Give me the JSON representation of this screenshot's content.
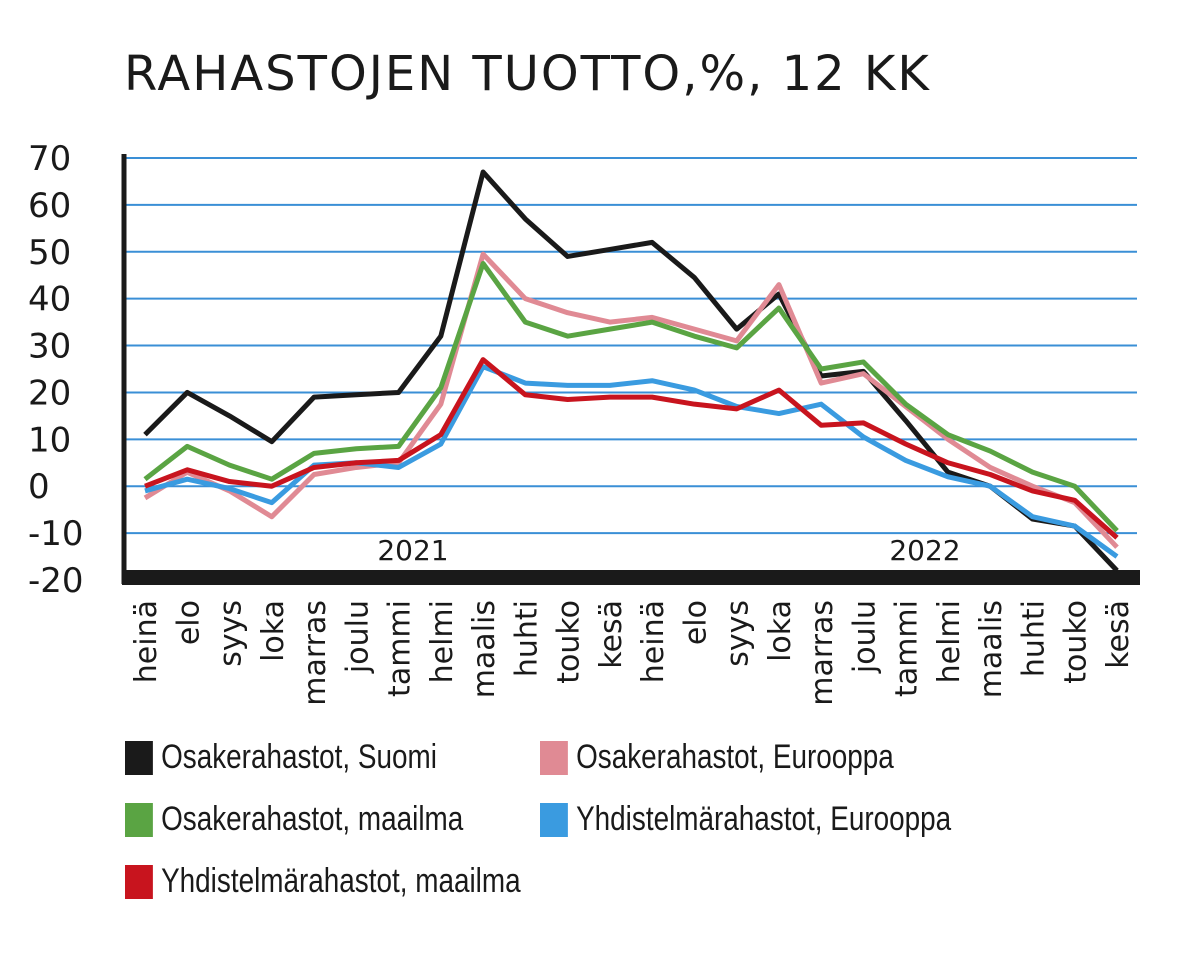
{
  "chart_data": {
    "type": "line",
    "title": "RAHASTOJEN TUOTTO,%, 12 KK",
    "xlabel": "",
    "ylabel": "",
    "ylim": [
      -20,
      70
    ],
    "yticks": [
      "70",
      "60",
      "50",
      "40",
      "30",
      "20",
      "10",
      "0",
      "-10",
      "-20"
    ],
    "grid": true,
    "year_labels": [
      "2021",
      "2022"
    ],
    "categories": [
      "heinä",
      "elo",
      "syys",
      "loka",
      "marras",
      "joulu",
      "tammi",
      "helmi",
      "maalis",
      "huhti",
      "touko",
      "kesä",
      "heinä",
      "elo",
      "syys",
      "loka",
      "marras",
      "joulu",
      "tammi",
      "helmi",
      "maalis",
      "huhti",
      "touko",
      "kesä"
    ],
    "series": [
      {
        "name": "Osakerahastot, Suomi",
        "color": "#1a1a1a",
        "values": [
          11,
          20,
          15,
          9.5,
          19,
          19.5,
          20,
          32,
          67,
          57,
          49,
          50.5,
          52,
          44.5,
          33.5,
          41,
          23.5,
          24.5,
          14,
          3,
          0,
          -7,
          -8.5,
          -18
        ]
      },
      {
        "name": "Osakerahastot, Eurooppa",
        "color": "#e08a94",
        "values": [
          -2.5,
          3,
          -1,
          -6.5,
          2.5,
          4,
          5,
          17.5,
          49.5,
          40,
          37,
          35,
          36,
          33.5,
          31,
          43,
          22,
          24,
          17,
          10,
          4,
          0,
          -3.5,
          -13
        ]
      },
      {
        "name": "Osakerahastot, maailma",
        "color": "#5aa443",
        "values": [
          1.5,
          8.5,
          4.5,
          1.5,
          7,
          8,
          8.5,
          21,
          47.5,
          35,
          32,
          33.5,
          35,
          32,
          29.5,
          38,
          25,
          26.5,
          17.5,
          11,
          7.5,
          3,
          0,
          -9.5
        ]
      },
      {
        "name": "Yhdistelmärahastot, Eurooppa",
        "color": "#3a9be0",
        "values": [
          -1,
          1.5,
          -0.5,
          -3.5,
          4.5,
          5,
          4,
          9,
          25.5,
          22,
          21.5,
          21.5,
          22.5,
          20.5,
          17,
          15.5,
          17.5,
          10.5,
          5.5,
          2,
          0,
          -6.5,
          -8.5,
          -15
        ]
      },
      {
        "name": "Yhdistelmärahastot, maailma",
        "color": "#c8141e",
        "values": [
          0,
          3.5,
          1,
          0,
          4,
          5,
          5.5,
          11,
          27,
          19.5,
          18.5,
          19,
          19,
          17.5,
          16.5,
          20.5,
          13,
          13.5,
          9,
          5,
          2.5,
          -1,
          -3,
          -11
        ]
      }
    ],
    "legend_position": "bottom"
  }
}
